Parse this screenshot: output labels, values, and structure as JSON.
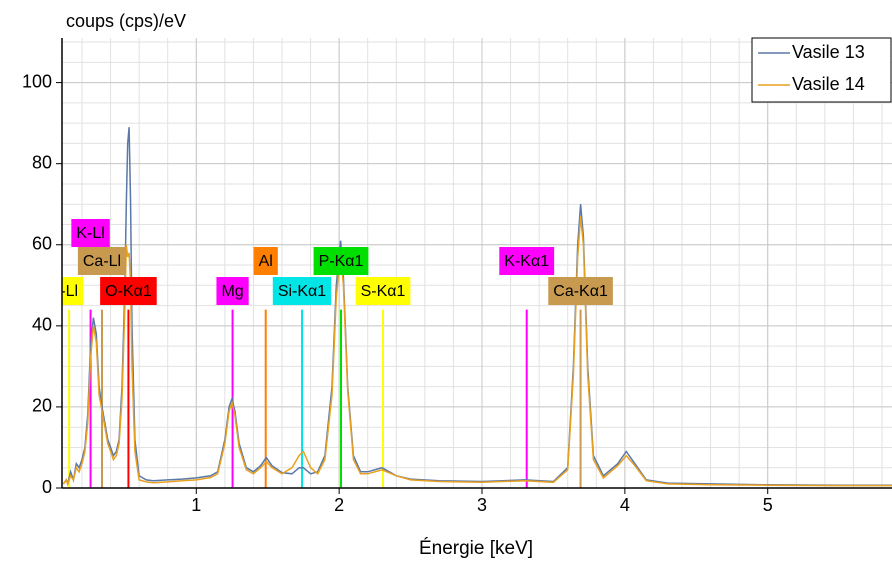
{
  "chart_data": {
    "type": "line",
    "ylabel": "coups (cps)/eV",
    "xlabel": "Énergie [keV]",
    "xlim": [
      0.06,
      5.87
    ],
    "ylim": [
      0,
      111
    ],
    "xticks": [
      1,
      2,
      3,
      4,
      5
    ],
    "yticks": [
      0,
      20,
      40,
      60,
      80,
      100
    ],
    "grid": true,
    "grid_minor_x": 0.2,
    "grid_minor_y": 5,
    "legend": "upper right",
    "x": [
      0.07,
      0.09,
      0.1,
      0.12,
      0.14,
      0.16,
      0.18,
      0.2,
      0.22,
      0.24,
      0.26,
      0.28,
      0.3,
      0.32,
      0.34,
      0.36,
      0.38,
      0.4,
      0.42,
      0.44,
      0.46,
      0.48,
      0.5,
      0.51,
      0.52,
      0.53,
      0.54,
      0.55,
      0.57,
      0.6,
      0.65,
      0.7,
      0.8,
      0.9,
      1.0,
      1.1,
      1.15,
      1.2,
      1.23,
      1.25,
      1.27,
      1.3,
      1.35,
      1.4,
      1.45,
      1.49,
      1.53,
      1.6,
      1.67,
      1.72,
      1.75,
      1.8,
      1.85,
      1.9,
      1.95,
      1.98,
      2.01,
      2.03,
      2.06,
      2.1,
      2.15,
      2.2,
      2.3,
      2.4,
      2.5,
      2.7,
      3.0,
      3.3,
      3.5,
      3.6,
      3.64,
      3.67,
      3.69,
      3.71,
      3.74,
      3.78,
      3.85,
      3.95,
      4.01,
      4.07,
      4.15,
      4.3,
      4.6,
      5.0,
      5.5,
      5.87
    ],
    "series": [
      {
        "name": "Vasile 13",
        "color": "#5a78a8",
        "values": [
          1,
          2,
          1,
          4,
          2,
          6,
          5,
          7,
          10,
          18,
          35,
          42,
          38,
          25,
          20,
          16,
          12,
          10,
          8,
          9,
          12,
          25,
          50,
          70,
          85,
          89,
          70,
          40,
          12,
          3,
          2,
          1.8,
          2,
          2.2,
          2.5,
          3,
          4,
          12,
          20,
          22,
          19,
          11,
          5,
          4,
          5.5,
          7.5,
          5.5,
          3.8,
          3.5,
          5,
          5,
          3.5,
          4,
          8,
          25,
          50,
          61,
          52,
          25,
          8,
          4,
          4,
          5,
          3,
          2.2,
          1.8,
          1.6,
          2,
          1.6,
          5,
          30,
          60,
          70,
          62,
          30,
          8,
          3,
          6,
          9,
          6,
          2,
          1.2,
          1,
          0.8,
          0.7,
          0.7
        ]
      },
      {
        "name": "Vasile 14",
        "color": "#e8a020",
        "values": [
          1,
          2,
          1,
          3,
          2,
          5,
          4,
          6,
          9,
          16,
          32,
          40,
          36,
          23,
          19,
          15,
          11,
          9,
          7,
          8,
          11,
          22,
          45,
          60,
          57,
          58,
          50,
          30,
          9,
          2,
          1.5,
          1.3,
          1.5,
          1.8,
          2,
          2.6,
          3.5,
          11,
          19,
          21,
          18,
          10,
          4.5,
          3.5,
          5,
          6.5,
          5,
          3.5,
          5,
          8,
          9,
          5,
          3.5,
          7,
          23,
          47,
          58,
          50,
          24,
          7,
          3.5,
          3.5,
          4.5,
          3,
          2,
          1.6,
          1.4,
          1.8,
          1.4,
          4.5,
          28,
          57,
          67,
          60,
          28,
          7,
          2.5,
          5.5,
          8,
          5.5,
          1.8,
          1,
          0.8,
          0.7,
          0.6,
          0.6
        ]
      }
    ],
    "marker_height": 44,
    "markers": [
      {
        "label": "-Ll",
        "energy": 0.11,
        "color": "#ffff00"
      },
      {
        "label": "K-Ll",
        "energy": 0.26,
        "color": "#ff00ff"
      },
      {
        "label": "Ca-Ll",
        "energy": 0.34,
        "color": "#c89a50"
      },
      {
        "label": "O-Kα1",
        "energy": 0.525,
        "color": "#ff0000"
      },
      {
        "label": "Mg",
        "energy": 1.254,
        "color": "#ff00ff"
      },
      {
        "label": "Al",
        "energy": 1.486,
        "color": "#ff7f00"
      },
      {
        "label": "Si-Kα1",
        "energy": 1.74,
        "color": "#00e5e5"
      },
      {
        "label": "P-Kα1",
        "energy": 2.013,
        "color": "#00e000"
      },
      {
        "label": "S-Kα1",
        "energy": 2.307,
        "color": "#ffff00"
      },
      {
        "label": "K-Kα1",
        "energy": 3.313,
        "color": "#ff00ff"
      },
      {
        "label": "Ca-Kα1",
        "energy": 3.69,
        "color": "#c89a50"
      }
    ]
  }
}
